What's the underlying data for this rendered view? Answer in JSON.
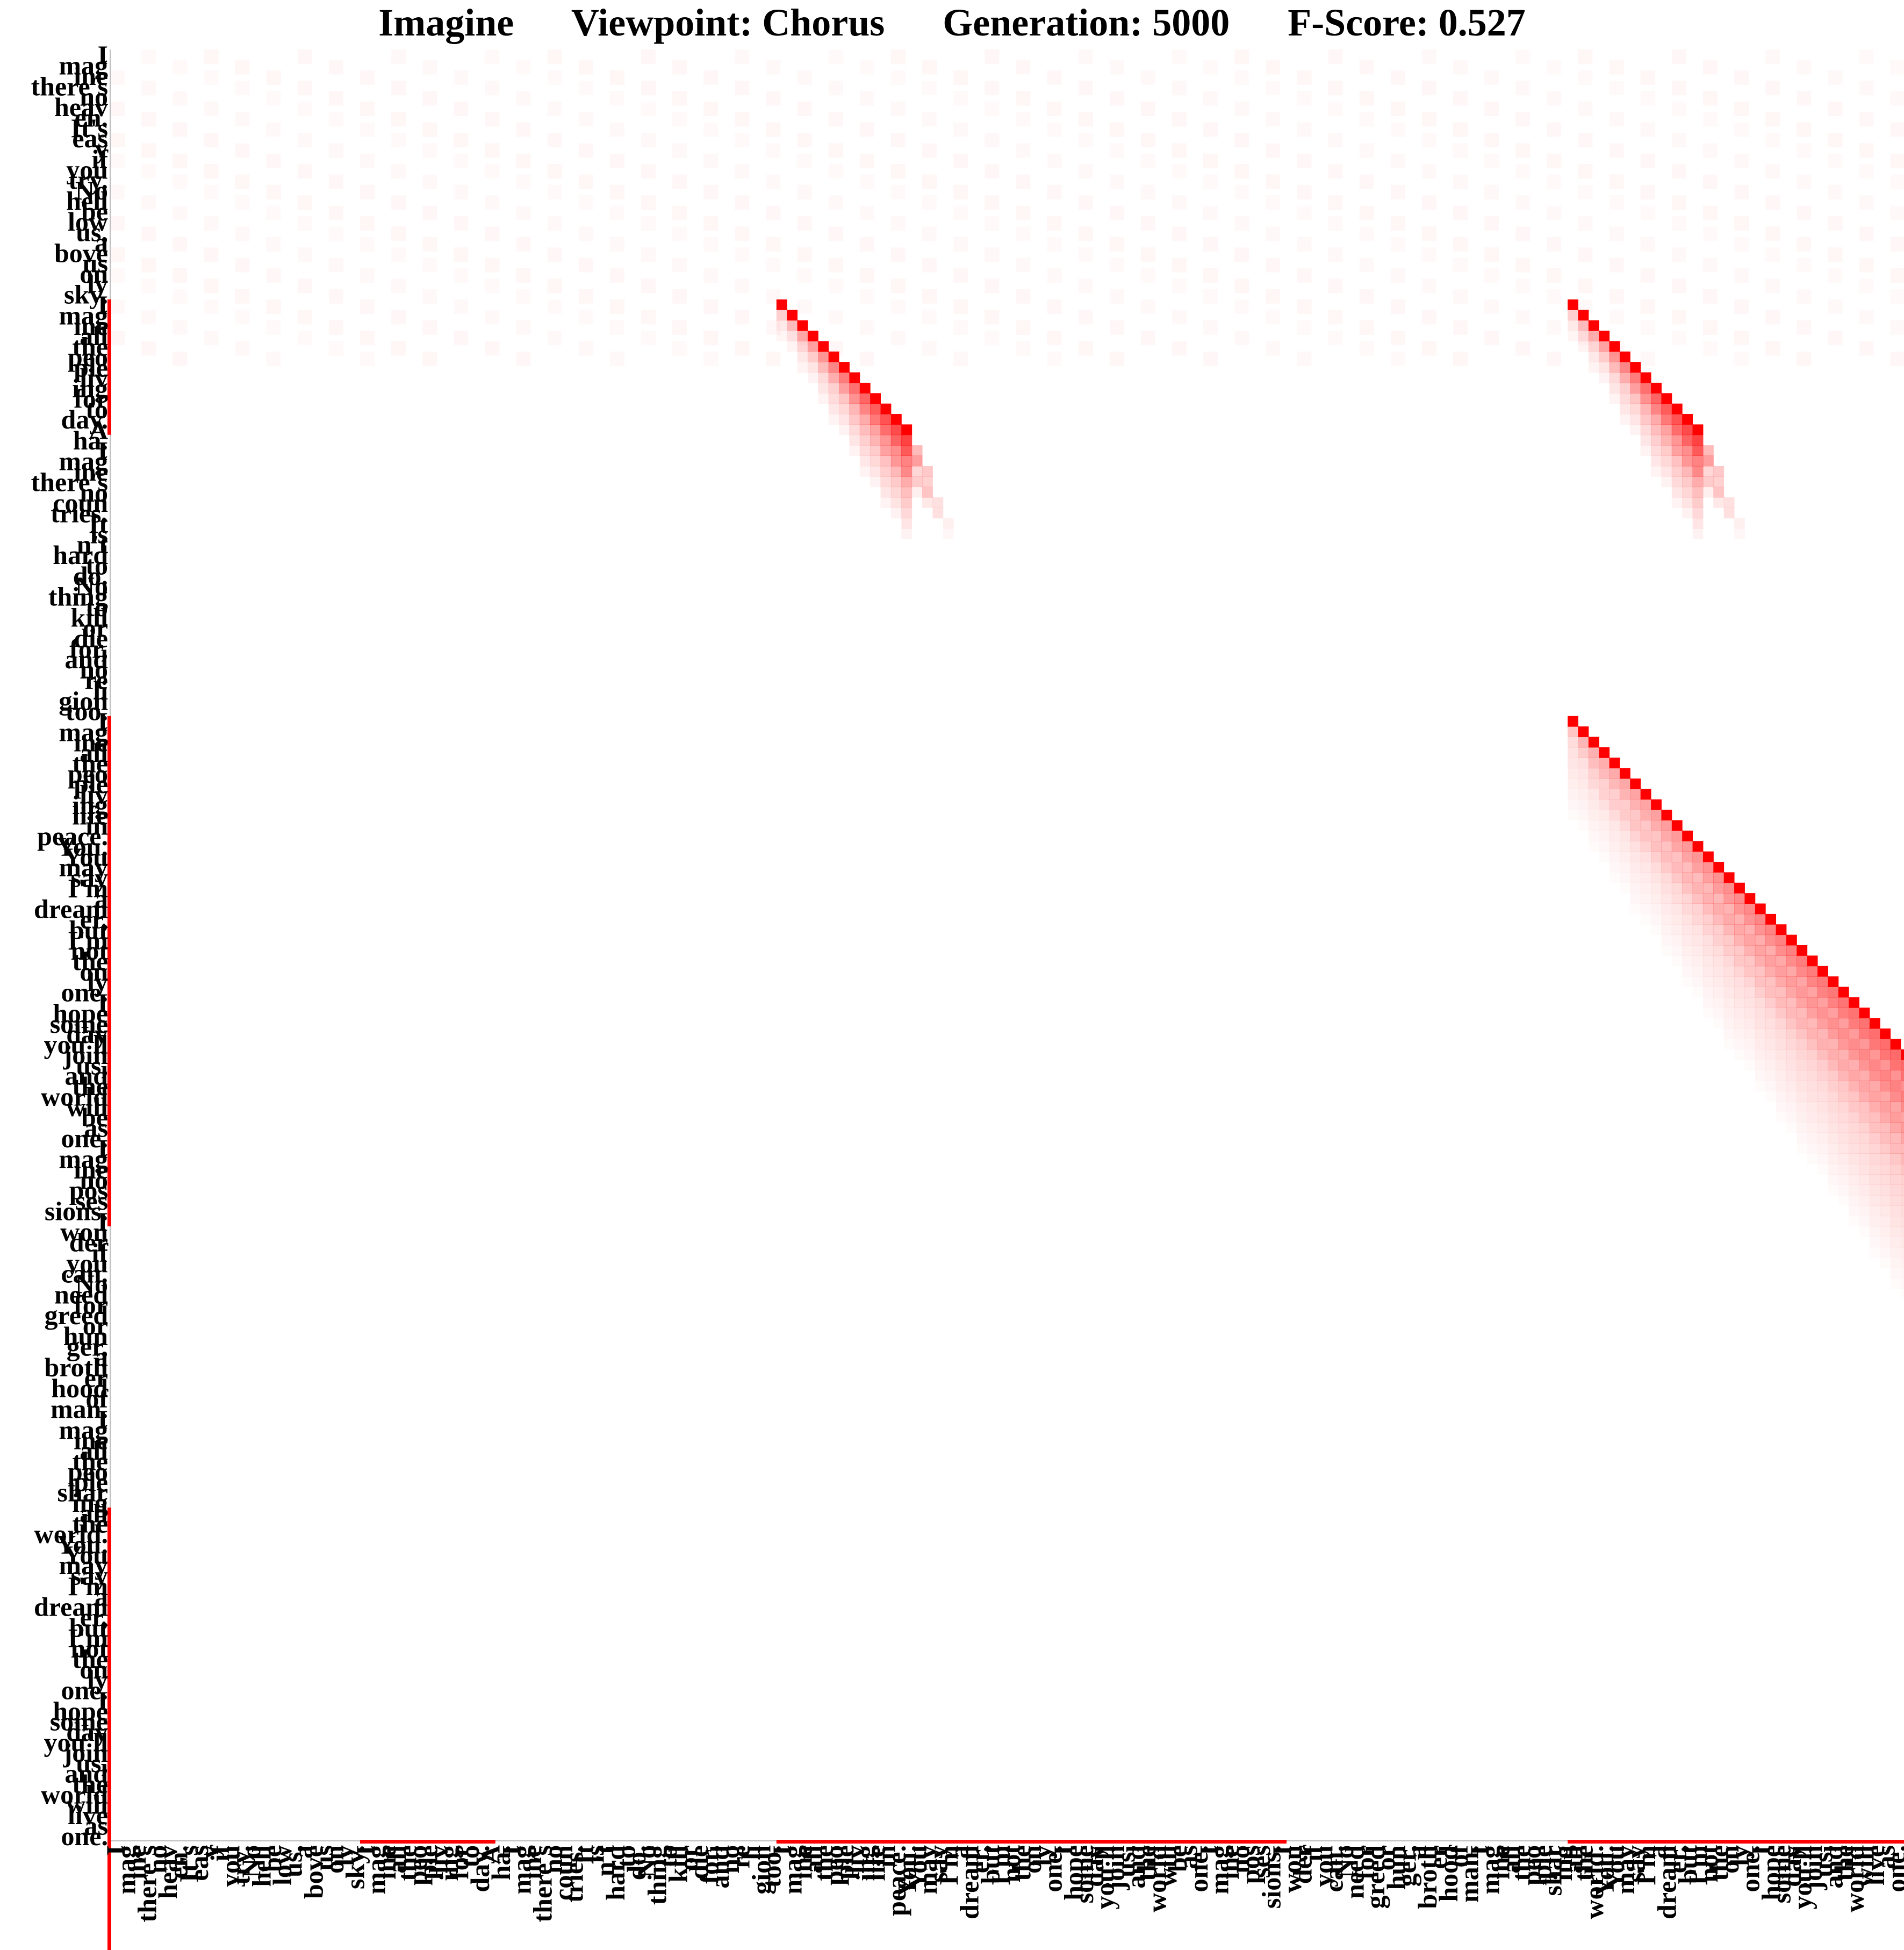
{
  "chart_data": {
    "type": "heatmap",
    "title": "Imagine      Viewpoint: Chorus      Generation: 5000      F-Score: 0.527",
    "colors": {
      "heat": "#ff0000",
      "axis": "#bbbbbb",
      "text": "#000000"
    },
    "grid": false,
    "words": [
      "I",
      "mag",
      "ine",
      "there's",
      "no",
      "heav",
      "en.",
      "It's",
      "eas",
      "y",
      "if",
      "you",
      "try.",
      "No",
      "hell",
      "be",
      "low",
      "us,",
      "a",
      "bove",
      "us",
      "on",
      "ly",
      "sky.",
      "I",
      "mag",
      "ine",
      "all",
      "the",
      "peo",
      "ple",
      "liv",
      "ing",
      "for",
      "to",
      "day.",
      "A",
      "ha.",
      "I",
      "mag",
      "ine",
      "there's",
      "no",
      "coun",
      "tries.",
      "It",
      "is",
      "n't",
      "hard",
      "to",
      "do.",
      "No",
      "thing",
      "to",
      "kill",
      "or",
      "die",
      "for,",
      "and",
      "no",
      "re",
      "li",
      "gion",
      "too.",
      "I",
      "mag",
      "ine",
      "all",
      "the",
      "peo",
      "ple",
      "liv",
      "ing",
      "life",
      "in",
      "peace.",
      "You.",
      "You",
      "may",
      "say",
      "I'm",
      "a",
      "dream",
      "er,",
      "but",
      "I'm",
      "not",
      "the",
      "on",
      "ly",
      "one.",
      "I",
      "hope",
      "some",
      "day",
      "you'll",
      "join",
      "us,",
      "and",
      "the",
      "world",
      "will",
      "be",
      "as",
      "one.",
      "I",
      "mag",
      "ine",
      "no",
      "pos",
      "ses",
      "sions.",
      "I",
      "won",
      "der",
      "if",
      "you",
      "can.",
      "No",
      "need",
      "for",
      "greed",
      "or",
      "hun",
      "ger,",
      "a",
      "broth",
      "er",
      "hood",
      "of",
      "man.",
      "I",
      "mag",
      "ine",
      "all",
      "the",
      "peo",
      "ple",
      "shar",
      "ing",
      "all",
      "the",
      "world.",
      "You.",
      "You",
      "may",
      "say",
      "I'm",
      "a",
      "dream",
      "er,",
      "but",
      "I'm",
      "not",
      "the",
      "on",
      "ly",
      "one.",
      "I",
      "hope",
      "some",
      "day",
      "you'll",
      "join",
      "us,",
      "and",
      "the",
      "world",
      "will",
      "live",
      "as",
      "one."
    ],
    "annotated_segments": [
      [
        24,
        36
      ],
      [
        64,
        96
      ],
      [
        97,
        112
      ],
      [
        140,
        172
      ],
      [
        173,
        188
      ]
    ],
    "diagonal_bands": [
      {
        "row_start": 24,
        "col_start": 64,
        "length": 13,
        "spread": 10
      },
      {
        "row_start": 24,
        "col_start": 140,
        "length": 13,
        "spread": 10
      },
      {
        "row_start": 64,
        "col_start": 140,
        "length": 63,
        "spread": 36
      }
    ],
    "xlabel": "",
    "ylabel": ""
  }
}
